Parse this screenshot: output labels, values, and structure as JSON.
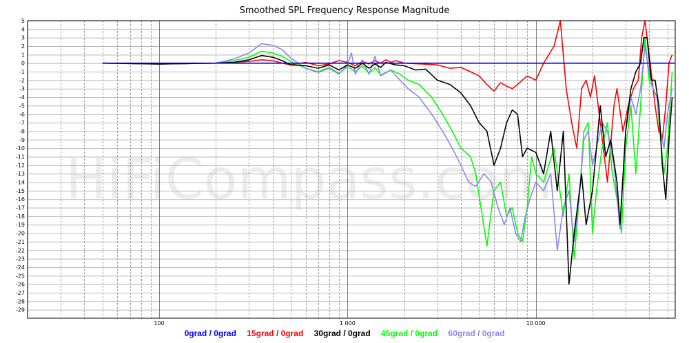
{
  "chart_data": {
    "type": "line",
    "title": "Smoothed SPL Frequency Response Magnitude",
    "watermark": "HiFiCompass.com",
    "x_scale": "log",
    "xlim": [
      20,
      55000
    ],
    "ylim": [
      -30,
      5
    ],
    "x_tick_labels": [
      {
        "value": 100,
        "label": "100"
      },
      {
        "value": 1000,
        "label": "1 000"
      },
      {
        "value": 10000,
        "label": "10 000"
      }
    ],
    "y_ticks": [
      5,
      4,
      3,
      2,
      1,
      0,
      -1,
      -2,
      -3,
      -4,
      -5,
      -6,
      -7,
      -8,
      -9,
      -10,
      -11,
      -12,
      -13,
      -14,
      -15,
      -16,
      -17,
      -18,
      -19,
      -20,
      -21,
      -22,
      -23,
      -24,
      -25,
      -26,
      -27,
      -28,
      -29
    ],
    "grid": true,
    "legend_position": "bottom",
    "series": [
      {
        "name": "0grad / 0grad",
        "color": "#0000ff",
        "points": [
          [
            50,
            0
          ],
          [
            100,
            0
          ],
          [
            200,
            0
          ],
          [
            500,
            0
          ],
          [
            1000,
            0
          ],
          [
            2000,
            0
          ],
          [
            5000,
            0
          ],
          [
            10000,
            0
          ],
          [
            20000,
            0
          ],
          [
            30000,
            0
          ],
          [
            38000,
            0
          ],
          [
            55000,
            0
          ]
        ]
      },
      {
        "name": "15grad / 0grad",
        "color": "#ff0000",
        "points": [
          [
            50,
            0
          ],
          [
            100,
            -0.1
          ],
          [
            200,
            0
          ],
          [
            300,
            0.2
          ],
          [
            350,
            0.4
          ],
          [
            400,
            0.3
          ],
          [
            450,
            0
          ],
          [
            500,
            -0.2
          ],
          [
            600,
            0.1
          ],
          [
            700,
            -0.3
          ],
          [
            800,
            -0.1
          ],
          [
            900,
            0.3
          ],
          [
            1000,
            0.1
          ],
          [
            1100,
            -0.3
          ],
          [
            1200,
            0.2
          ],
          [
            1300,
            -0.1
          ],
          [
            1400,
            0.3
          ],
          [
            1500,
            0
          ],
          [
            1600,
            0.4
          ],
          [
            1700,
            0.1
          ],
          [
            1800,
            0.3
          ],
          [
            2000,
            0
          ],
          [
            2500,
            -0.1
          ],
          [
            3000,
            -0.2
          ],
          [
            3500,
            -0.6
          ],
          [
            4000,
            -0.5
          ],
          [
            4500,
            -1
          ],
          [
            5000,
            -1.5
          ],
          [
            5500,
            -2.5
          ],
          [
            6000,
            -3.3
          ],
          [
            6500,
            -2.3
          ],
          [
            7000,
            -2.7
          ],
          [
            7500,
            -3
          ],
          [
            8000,
            -2.5
          ],
          [
            9000,
            -1.5
          ],
          [
            10000,
            -2
          ],
          [
            11000,
            0
          ],
          [
            12500,
            2
          ],
          [
            13500,
            5
          ],
          [
            14500,
            -3
          ],
          [
            15500,
            -7
          ],
          [
            16500,
            -10
          ],
          [
            17500,
            -3
          ],
          [
            18500,
            -2
          ],
          [
            19500,
            -4
          ],
          [
            20500,
            -1.5
          ],
          [
            22000,
            -7
          ],
          [
            24000,
            -14
          ],
          [
            26000,
            -5
          ],
          [
            27000,
            -3
          ],
          [
            29000,
            -8
          ],
          [
            31000,
            -5
          ],
          [
            33000,
            -3
          ],
          [
            35000,
            -2
          ],
          [
            36500,
            3
          ],
          [
            38000,
            6
          ],
          [
            39500,
            2
          ],
          [
            41000,
            -1
          ],
          [
            43000,
            -5
          ],
          [
            45000,
            -8
          ],
          [
            47000,
            -9
          ],
          [
            49000,
            -5
          ],
          [
            51000,
            0
          ],
          [
            53000,
            1
          ]
        ]
      },
      {
        "name": "30grad / 0grad",
        "color": "#000000",
        "points": [
          [
            50,
            0
          ],
          [
            100,
            -0.1
          ],
          [
            200,
            0
          ],
          [
            250,
            0.1
          ],
          [
            300,
            0.4
          ],
          [
            350,
            0.9
          ],
          [
            400,
            0.7
          ],
          [
            450,
            0.3
          ],
          [
            500,
            -0.2
          ],
          [
            600,
            -0.3
          ],
          [
            700,
            -0.6
          ],
          [
            800,
            -0.2
          ],
          [
            900,
            -0.8
          ],
          [
            1000,
            -0.2
          ],
          [
            1100,
            -0.6
          ],
          [
            1200,
            0
          ],
          [
            1300,
            -0.6
          ],
          [
            1400,
            -0.1
          ],
          [
            1500,
            -0.5
          ],
          [
            1600,
            0.1
          ],
          [
            1800,
            -0.2
          ],
          [
            2000,
            -0.3
          ],
          [
            2300,
            -0.8
          ],
          [
            2600,
            -0.7
          ],
          [
            3000,
            -2
          ],
          [
            3500,
            -2.5
          ],
          [
            4000,
            -3.5
          ],
          [
            4500,
            -5
          ],
          [
            5000,
            -7
          ],
          [
            5500,
            -8
          ],
          [
            6000,
            -12
          ],
          [
            6500,
            -10
          ],
          [
            7000,
            -7
          ],
          [
            7500,
            -5.5
          ],
          [
            8000,
            -6
          ],
          [
            8500,
            -11
          ],
          [
            9000,
            -10
          ],
          [
            10000,
            -10.5
          ],
          [
            11000,
            -13
          ],
          [
            12000,
            -8
          ],
          [
            13000,
            -15
          ],
          [
            14000,
            -8
          ],
          [
            15000,
            -26
          ],
          [
            16000,
            -20
          ],
          [
            17500,
            -13
          ],
          [
            18500,
            -19
          ],
          [
            20000,
            -15
          ],
          [
            21000,
            -10
          ],
          [
            22000,
            -5
          ],
          [
            23500,
            -11
          ],
          [
            25000,
            -9
          ],
          [
            27000,
            -14
          ],
          [
            28000,
            -19
          ],
          [
            30000,
            -8
          ],
          [
            32000,
            -3
          ],
          [
            34000,
            -1
          ],
          [
            36000,
            0
          ],
          [
            37500,
            3
          ],
          [
            39000,
            3
          ],
          [
            41000,
            -2
          ],
          [
            43000,
            -2
          ],
          [
            45000,
            -5
          ],
          [
            47000,
            -12
          ],
          [
            49000,
            -16
          ],
          [
            51000,
            -9
          ],
          [
            53000,
            -4
          ]
        ]
      },
      {
        "name": "45grad / 0grad",
        "color": "#00ff00",
        "points": [
          [
            50,
            0
          ],
          [
            100,
            -0.1
          ],
          [
            200,
            0
          ],
          [
            250,
            0.3
          ],
          [
            300,
            0.7
          ],
          [
            350,
            1.4
          ],
          [
            400,
            1.2
          ],
          [
            450,
            0.8
          ],
          [
            500,
            0.2
          ],
          [
            600,
            -0.6
          ],
          [
            700,
            -1
          ],
          [
            800,
            -0.5
          ],
          [
            900,
            -1.2
          ],
          [
            1000,
            -0.4
          ],
          [
            1100,
            -1
          ],
          [
            1200,
            -0.3
          ],
          [
            1300,
            -1.2
          ],
          [
            1400,
            -0.5
          ],
          [
            1500,
            -1.4
          ],
          [
            1700,
            -0.8
          ],
          [
            1900,
            -1.3
          ],
          [
            2100,
            -2
          ],
          [
            2400,
            -2.5
          ],
          [
            2800,
            -4
          ],
          [
            3200,
            -6
          ],
          [
            3600,
            -8
          ],
          [
            4000,
            -10
          ],
          [
            4500,
            -11
          ],
          [
            4800,
            -13
          ],
          [
            5200,
            -18
          ],
          [
            5500,
            -21.5
          ],
          [
            6000,
            -15
          ],
          [
            6500,
            -14
          ],
          [
            7000,
            -18
          ],
          [
            7500,
            -17
          ],
          [
            8000,
            -20
          ],
          [
            8500,
            -21
          ],
          [
            9000,
            -17
          ],
          [
            9500,
            -11
          ],
          [
            10000,
            -13
          ],
          [
            11000,
            -14
          ],
          [
            12500,
            -10
          ],
          [
            14000,
            -18
          ],
          [
            15000,
            -13
          ],
          [
            16000,
            -23
          ],
          [
            17000,
            -16
          ],
          [
            18000,
            -8
          ],
          [
            19000,
            -7
          ],
          [
            20000,
            -20
          ],
          [
            21000,
            -15
          ],
          [
            22500,
            -10
          ],
          [
            24000,
            -7
          ],
          [
            25500,
            -13
          ],
          [
            27000,
            -16
          ],
          [
            28500,
            -20
          ],
          [
            30000,
            -10
          ],
          [
            32000,
            -5
          ],
          [
            34000,
            -13
          ],
          [
            36000,
            -5
          ],
          [
            38000,
            3
          ],
          [
            40000,
            -2
          ],
          [
            42000,
            -3
          ],
          [
            44000,
            -4
          ],
          [
            46000,
            -9
          ],
          [
            48000,
            -13
          ],
          [
            50000,
            -10
          ],
          [
            53000,
            -1
          ]
        ]
      },
      {
        "name": "60grad / 0grad",
        "color": "#8888ee",
        "points": [
          [
            50,
            0
          ],
          [
            100,
            -0.1
          ],
          [
            200,
            0
          ],
          [
            250,
            0.5
          ],
          [
            300,
            1.2
          ],
          [
            350,
            2.3
          ],
          [
            400,
            2.1
          ],
          [
            450,
            1.6
          ],
          [
            500,
            0.6
          ],
          [
            600,
            -0.6
          ],
          [
            700,
            -1.1
          ],
          [
            800,
            -0.6
          ],
          [
            900,
            -1.3
          ],
          [
            1000,
            -0.2
          ],
          [
            1050,
            1.2
          ],
          [
            1100,
            -1.3
          ],
          [
            1200,
            0.4
          ],
          [
            1300,
            -1.3
          ],
          [
            1400,
            0.8
          ],
          [
            1500,
            -1.5
          ],
          [
            1700,
            -0.8
          ],
          [
            1900,
            -2
          ],
          [
            2100,
            -3
          ],
          [
            2400,
            -4
          ],
          [
            2800,
            -6
          ],
          [
            3200,
            -8
          ],
          [
            3600,
            -10
          ],
          [
            4000,
            -12
          ],
          [
            4400,
            -14
          ],
          [
            4800,
            -14.5
          ],
          [
            5300,
            -13
          ],
          [
            5800,
            -14
          ],
          [
            6300,
            -17
          ],
          [
            6800,
            -19
          ],
          [
            7300,
            -17
          ],
          [
            7800,
            -20
          ],
          [
            8300,
            -21
          ],
          [
            8800,
            -18
          ],
          [
            9300,
            -16
          ],
          [
            10000,
            -14
          ],
          [
            11000,
            -15
          ],
          [
            12000,
            -13
          ],
          [
            13000,
            -22
          ],
          [
            14000,
            -17
          ],
          [
            15000,
            -15
          ],
          [
            16000,
            -21
          ],
          [
            17000,
            -16
          ],
          [
            18000,
            -9
          ],
          [
            19000,
            -8
          ],
          [
            20000,
            -12
          ],
          [
            21000,
            -10
          ],
          [
            22500,
            -7
          ],
          [
            24000,
            -8
          ],
          [
            26000,
            -12
          ],
          [
            28000,
            -19.5
          ],
          [
            30000,
            -8
          ],
          [
            32000,
            -4
          ],
          [
            34000,
            -6
          ],
          [
            36000,
            -3
          ],
          [
            38000,
            2
          ],
          [
            40000,
            -1
          ],
          [
            42000,
            -3
          ],
          [
            44000,
            -4
          ],
          [
            46000,
            -8
          ],
          [
            48000,
            -10
          ],
          [
            50000,
            -6
          ],
          [
            53000,
            -3
          ]
        ]
      }
    ]
  }
}
